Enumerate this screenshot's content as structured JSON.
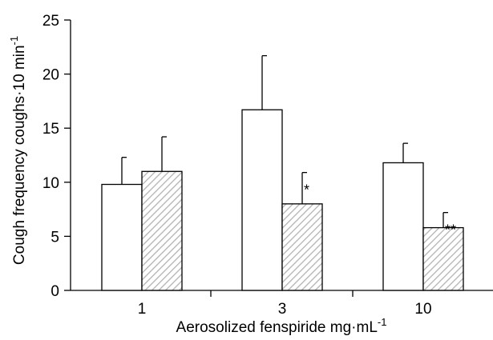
{
  "chart_data": {
    "type": "bar",
    "title": "",
    "xlabel": "Aerosolized fenspiride  mg·mL",
    "xlabel_sup": "-1",
    "ylabel": "Cough frequency  coughs·10 min",
    "ylabel_sup": "-1",
    "categories": [
      "1",
      "3",
      "10"
    ],
    "ylim": [
      0,
      25
    ],
    "yticks": [
      "0",
      "5",
      "10",
      "15",
      "20",
      "25"
    ],
    "grid": false,
    "legend": "none",
    "series": [
      {
        "style": "open",
        "values": [
          9.8,
          16.7,
          11.8
        ],
        "errors": [
          2.5,
          5.0,
          1.8
        ]
      },
      {
        "style": "hatched",
        "values": [
          11.0,
          8.0,
          5.8
        ],
        "errors": [
          3.2,
          2.9,
          1.4
        ]
      }
    ],
    "annotations": [
      {
        "series": 1,
        "category": 1,
        "text": "*"
      },
      {
        "series": 1,
        "category": 2,
        "text": "**"
      }
    ],
    "colors": {
      "bar_fill_open": "#ffffff",
      "hatch": "#b3b3b3",
      "stroke": "#000000"
    }
  }
}
